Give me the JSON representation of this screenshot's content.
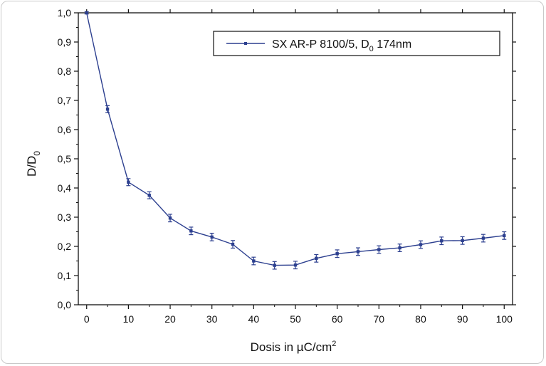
{
  "chart_data": {
    "type": "line",
    "xlabel": "Dosis in µC/cm",
    "xlabel_superscript": "2",
    "ylabel": "D/D",
    "ylabel_subscript": "0",
    "x_ticks": [
      "0",
      "10",
      "20",
      "30",
      "40",
      "50",
      "60",
      "70",
      "80",
      "90",
      "100"
    ],
    "y_ticks": [
      "0,0",
      "0,1",
      "0,2",
      "0,3",
      "0,4",
      "0,5",
      "0,6",
      "0,7",
      "0,8",
      "0,9",
      "1,0"
    ],
    "xlim": [
      -2,
      102
    ],
    "ylim": [
      0,
      1.0
    ],
    "grid": false,
    "legend_position": "top-right",
    "series": [
      {
        "name_main": "SX AR-P 8100/5, D",
        "name_sub": "0",
        "name_tail": " 174nm",
        "color": "#2c3f8f",
        "x": [
          0,
          5,
          10,
          15,
          20,
          25,
          30,
          35,
          40,
          45,
          50,
          55,
          60,
          65,
          70,
          75,
          80,
          85,
          90,
          95,
          100
        ],
        "y": [
          1.0,
          0.67,
          0.42,
          0.375,
          0.297,
          0.253,
          0.232,
          0.207,
          0.15,
          0.135,
          0.136,
          0.159,
          0.175,
          0.182,
          0.189,
          0.195,
          0.206,
          0.219,
          0.22,
          0.228,
          0.237
        ],
        "error": [
          0.004,
          0.012,
          0.012,
          0.012,
          0.013,
          0.013,
          0.013,
          0.013,
          0.013,
          0.013,
          0.013,
          0.013,
          0.013,
          0.013,
          0.013,
          0.013,
          0.013,
          0.013,
          0.013,
          0.013,
          0.013
        ]
      }
    ]
  }
}
